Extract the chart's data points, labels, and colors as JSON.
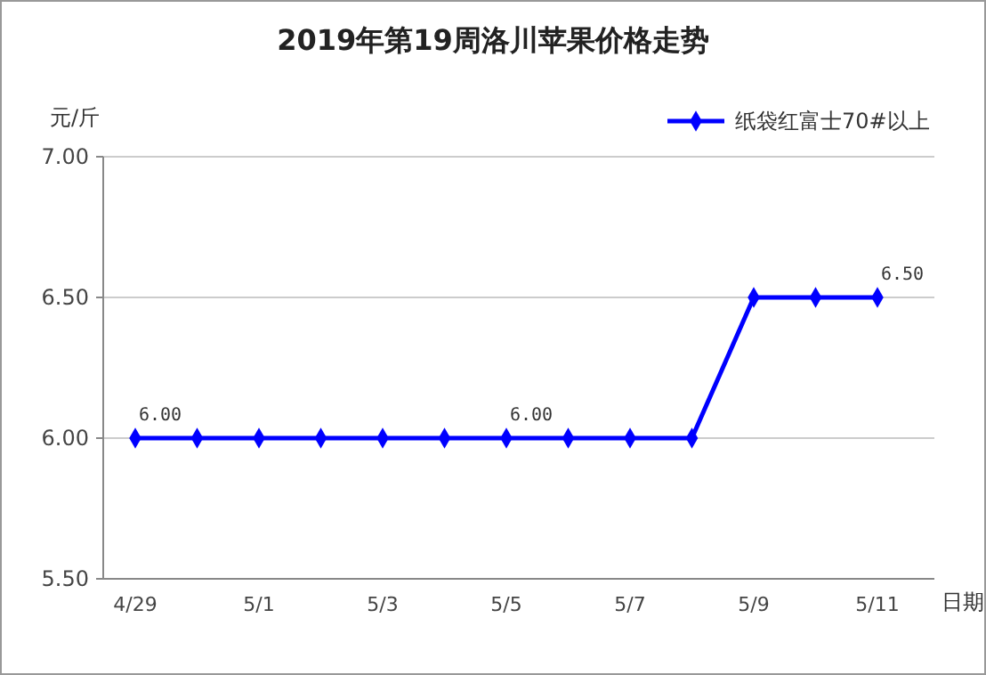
{
  "chart_data": {
    "type": "line",
    "title": "2019年第19周洛川苹果价格走势",
    "ylabel": "元/斤",
    "xlabel": "日期",
    "categories": [
      "4/29",
      null,
      "5/1",
      null,
      "5/3",
      null,
      "5/5",
      null,
      "5/7",
      null,
      "5/9",
      null,
      "5/11"
    ],
    "series": [
      {
        "name": "纸袋红富士70#以上",
        "color": "#0000ff",
        "values": [
          6,
          6,
          6,
          6,
          6,
          6,
          6,
          6,
          6,
          6,
          6.5,
          6.5,
          6.5
        ],
        "value_labels": [
          "6.00",
          null,
          null,
          null,
          null,
          null,
          "6.00",
          null,
          null,
          null,
          null,
          null,
          "6.50"
        ]
      }
    ],
    "ylim": [
      5.5,
      7
    ],
    "yticks": [
      {
        "value": 5.5,
        "label": "5.50"
      },
      {
        "value": 6,
        "label": "6.00"
      },
      {
        "value": 6.5,
        "label": "6.50"
      },
      {
        "value": 7,
        "label": "7.00"
      }
    ],
    "grid": "y",
    "legend": "top right",
    "marker": "diamond",
    "line_style": "solid"
  }
}
